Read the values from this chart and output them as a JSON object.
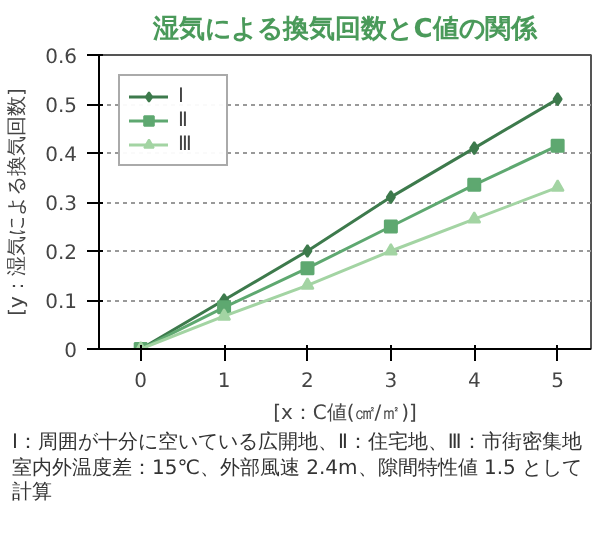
{
  "chart_data": {
    "type": "line",
    "title": "湿気による換気回数とC値の関係",
    "xlabel": "[x：C値(㎠/㎡)]",
    "ylabel": "[y：湿気による換気回数]",
    "x": [
      0,
      1,
      2,
      3,
      4,
      5
    ],
    "series": [
      {
        "name": "Ⅰ",
        "color": "#3d7a4c",
        "marker": "diamond",
        "values": [
          0,
          0.1,
          0.2,
          0.31,
          0.41,
          0.51
        ]
      },
      {
        "name": "Ⅱ",
        "color": "#5ea870",
        "marker": "square",
        "values": [
          0,
          0.085,
          0.165,
          0.25,
          0.335,
          0.415
        ]
      },
      {
        "name": "Ⅲ",
        "color": "#a3d4a3",
        "marker": "triangle",
        "values": [
          0,
          0.067,
          0.13,
          0.2,
          0.265,
          0.33
        ]
      }
    ],
    "xlim": [
      -0.5,
      5.4
    ],
    "ylim": [
      0,
      0.6
    ],
    "xticks": [
      0,
      1,
      2,
      3,
      4,
      5
    ],
    "yticks": [
      0,
      0.1,
      0.2,
      0.3,
      0.4,
      0.5,
      0.6
    ],
    "grid": "y",
    "legend": "top left",
    "line_style": "solid",
    "annotations": [
      "Ⅰ：周囲が十分に空いている広開地、Ⅱ：住宅地、Ⅲ：市街密集地",
      "室内外温度差：15℃、外部風速 2.4m、隙間特性値 1.5 として計算"
    ]
  }
}
